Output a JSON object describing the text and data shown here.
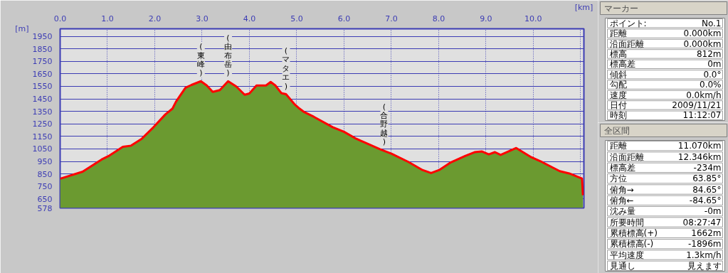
{
  "chart_data": [
    {
      "type": "area",
      "xlabel": "[km]",
      "ylabel": "[m]",
      "x": [
        0.0,
        0.475,
        0.875,
        1.025,
        1.325,
        1.5,
        1.725,
        1.975,
        2.225,
        2.375,
        2.45,
        2.65,
        2.775,
        2.975,
        3.1,
        3.225,
        3.375,
        3.55,
        3.725,
        3.9,
        4.0,
        4.15,
        4.35,
        4.45,
        4.55,
        4.675,
        4.775,
        4.95,
        5.06,
        5.16,
        5.36,
        5.76,
        6.0,
        6.26,
        6.76,
        7.01,
        7.36,
        7.66,
        7.84,
        8.01,
        8.26,
        8.56,
        8.76,
        8.91,
        9.06,
        9.19,
        9.31,
        9.64,
        9.96,
        10.16,
        10.56,
        10.76,
        11.03,
        11.05
      ],
      "series": [
        {
          "type": "area",
          "color": "#6b9a30",
          "values": [
            812,
            868,
            965,
            993,
            1067,
            1076,
            1131,
            1224,
            1326,
            1372,
            1428,
            1539,
            1561,
            1591,
            1557,
            1506,
            1520,
            1591,
            1548,
            1483,
            1493,
            1557,
            1557,
            1585,
            1557,
            1496,
            1487,
            1409,
            1372,
            1344,
            1307,
            1224,
            1187,
            1131,
            1048,
            1011,
            946,
            881,
            857,
            881,
            943,
            993,
            1024,
            1030,
            1006,
            1024,
            1002,
            1057,
            983,
            950,
            872,
            854,
            813,
            680
          ]
        },
        {
          "type": "line",
          "color": "#ff0000",
          "values": [
            812,
            868,
            965,
            993,
            1067,
            1076,
            1131,
            1224,
            1326,
            1372,
            1428,
            1539,
            1561,
            1591,
            1557,
            1506,
            1520,
            1591,
            1548,
            1483,
            1493,
            1557,
            1557,
            1585,
            1557,
            1496,
            1487,
            1409,
            1372,
            1344,
            1307,
            1224,
            1187,
            1131,
            1048,
            1011,
            946,
            881,
            857,
            881,
            943,
            993,
            1024,
            1030,
            1006,
            1024,
            1002,
            1057,
            983,
            950,
            872,
            854,
            813,
            680
          ]
        }
      ],
      "xlim": [
        0,
        11.07
      ],
      "ylim": [
        578,
        2010
      ],
      "xticks": [
        {
          "value": 0,
          "label": "0.0"
        },
        {
          "value": 1,
          "label": "1.0"
        },
        {
          "value": 2,
          "label": "2.0"
        },
        {
          "value": 3,
          "label": "3.0"
        },
        {
          "value": 4,
          "label": "4.0"
        },
        {
          "value": 5,
          "label": "5.0"
        },
        {
          "value": 6,
          "label": "6.0"
        },
        {
          "value": 7,
          "label": "7.0"
        },
        {
          "value": 8,
          "label": "8.0"
        },
        {
          "value": 9,
          "label": "9.0"
        },
        {
          "value": 10,
          "label": "10.0"
        },
        {
          "value": 11,
          "label": null
        }
      ],
      "yticks": [
        578,
        650,
        750,
        850,
        950,
        1050,
        1150,
        1250,
        1350,
        1450,
        1550,
        1650,
        1750,
        1850,
        1950
      ],
      "grid": true,
      "annotations": [
        {
          "text": "(東峰)",
          "x": 2.975,
          "y": 1591
        },
        {
          "text": "(由布岳)",
          "x": 3.55,
          "y": 1591
        },
        {
          "text": "(マタエ)",
          "x": 4.775,
          "y": 1487
        },
        {
          "text": "(合野越)",
          "x": 6.85,
          "y": 1040
        }
      ]
    },
    {
      "type": "other",
      "title": "マーカー",
      "annotations": [
        "ポイント:",
        "No.1",
        "距離",
        "0.000km",
        "沿面距離",
        "0.000km",
        "標高",
        "812m",
        "標高差",
        "0m",
        "傾斜",
        "0.0°",
        "勾配",
        "0.0%",
        "速度",
        "0.0km/h",
        "日付",
        "2009/11/21",
        "時刻",
        "11:12:07"
      ]
    },
    {
      "type": "other",
      "title": "全区間",
      "annotations": [
        "距離",
        "11.070km",
        "沿面距離",
        "12.346km",
        "標高差",
        "-234m",
        "方位",
        "63.85°",
        "俯角→",
        "84.65°",
        "俯角←",
        "-84.65°",
        "沈み量",
        "-0m",
        "所要時間",
        "08:27:47",
        "累積標高(+)",
        "1662m",
        "累積標高(-)",
        "-1896m",
        "平均速度",
        "1.3km/h",
        "見通し",
        "見えます"
      ]
    }
  ]
}
